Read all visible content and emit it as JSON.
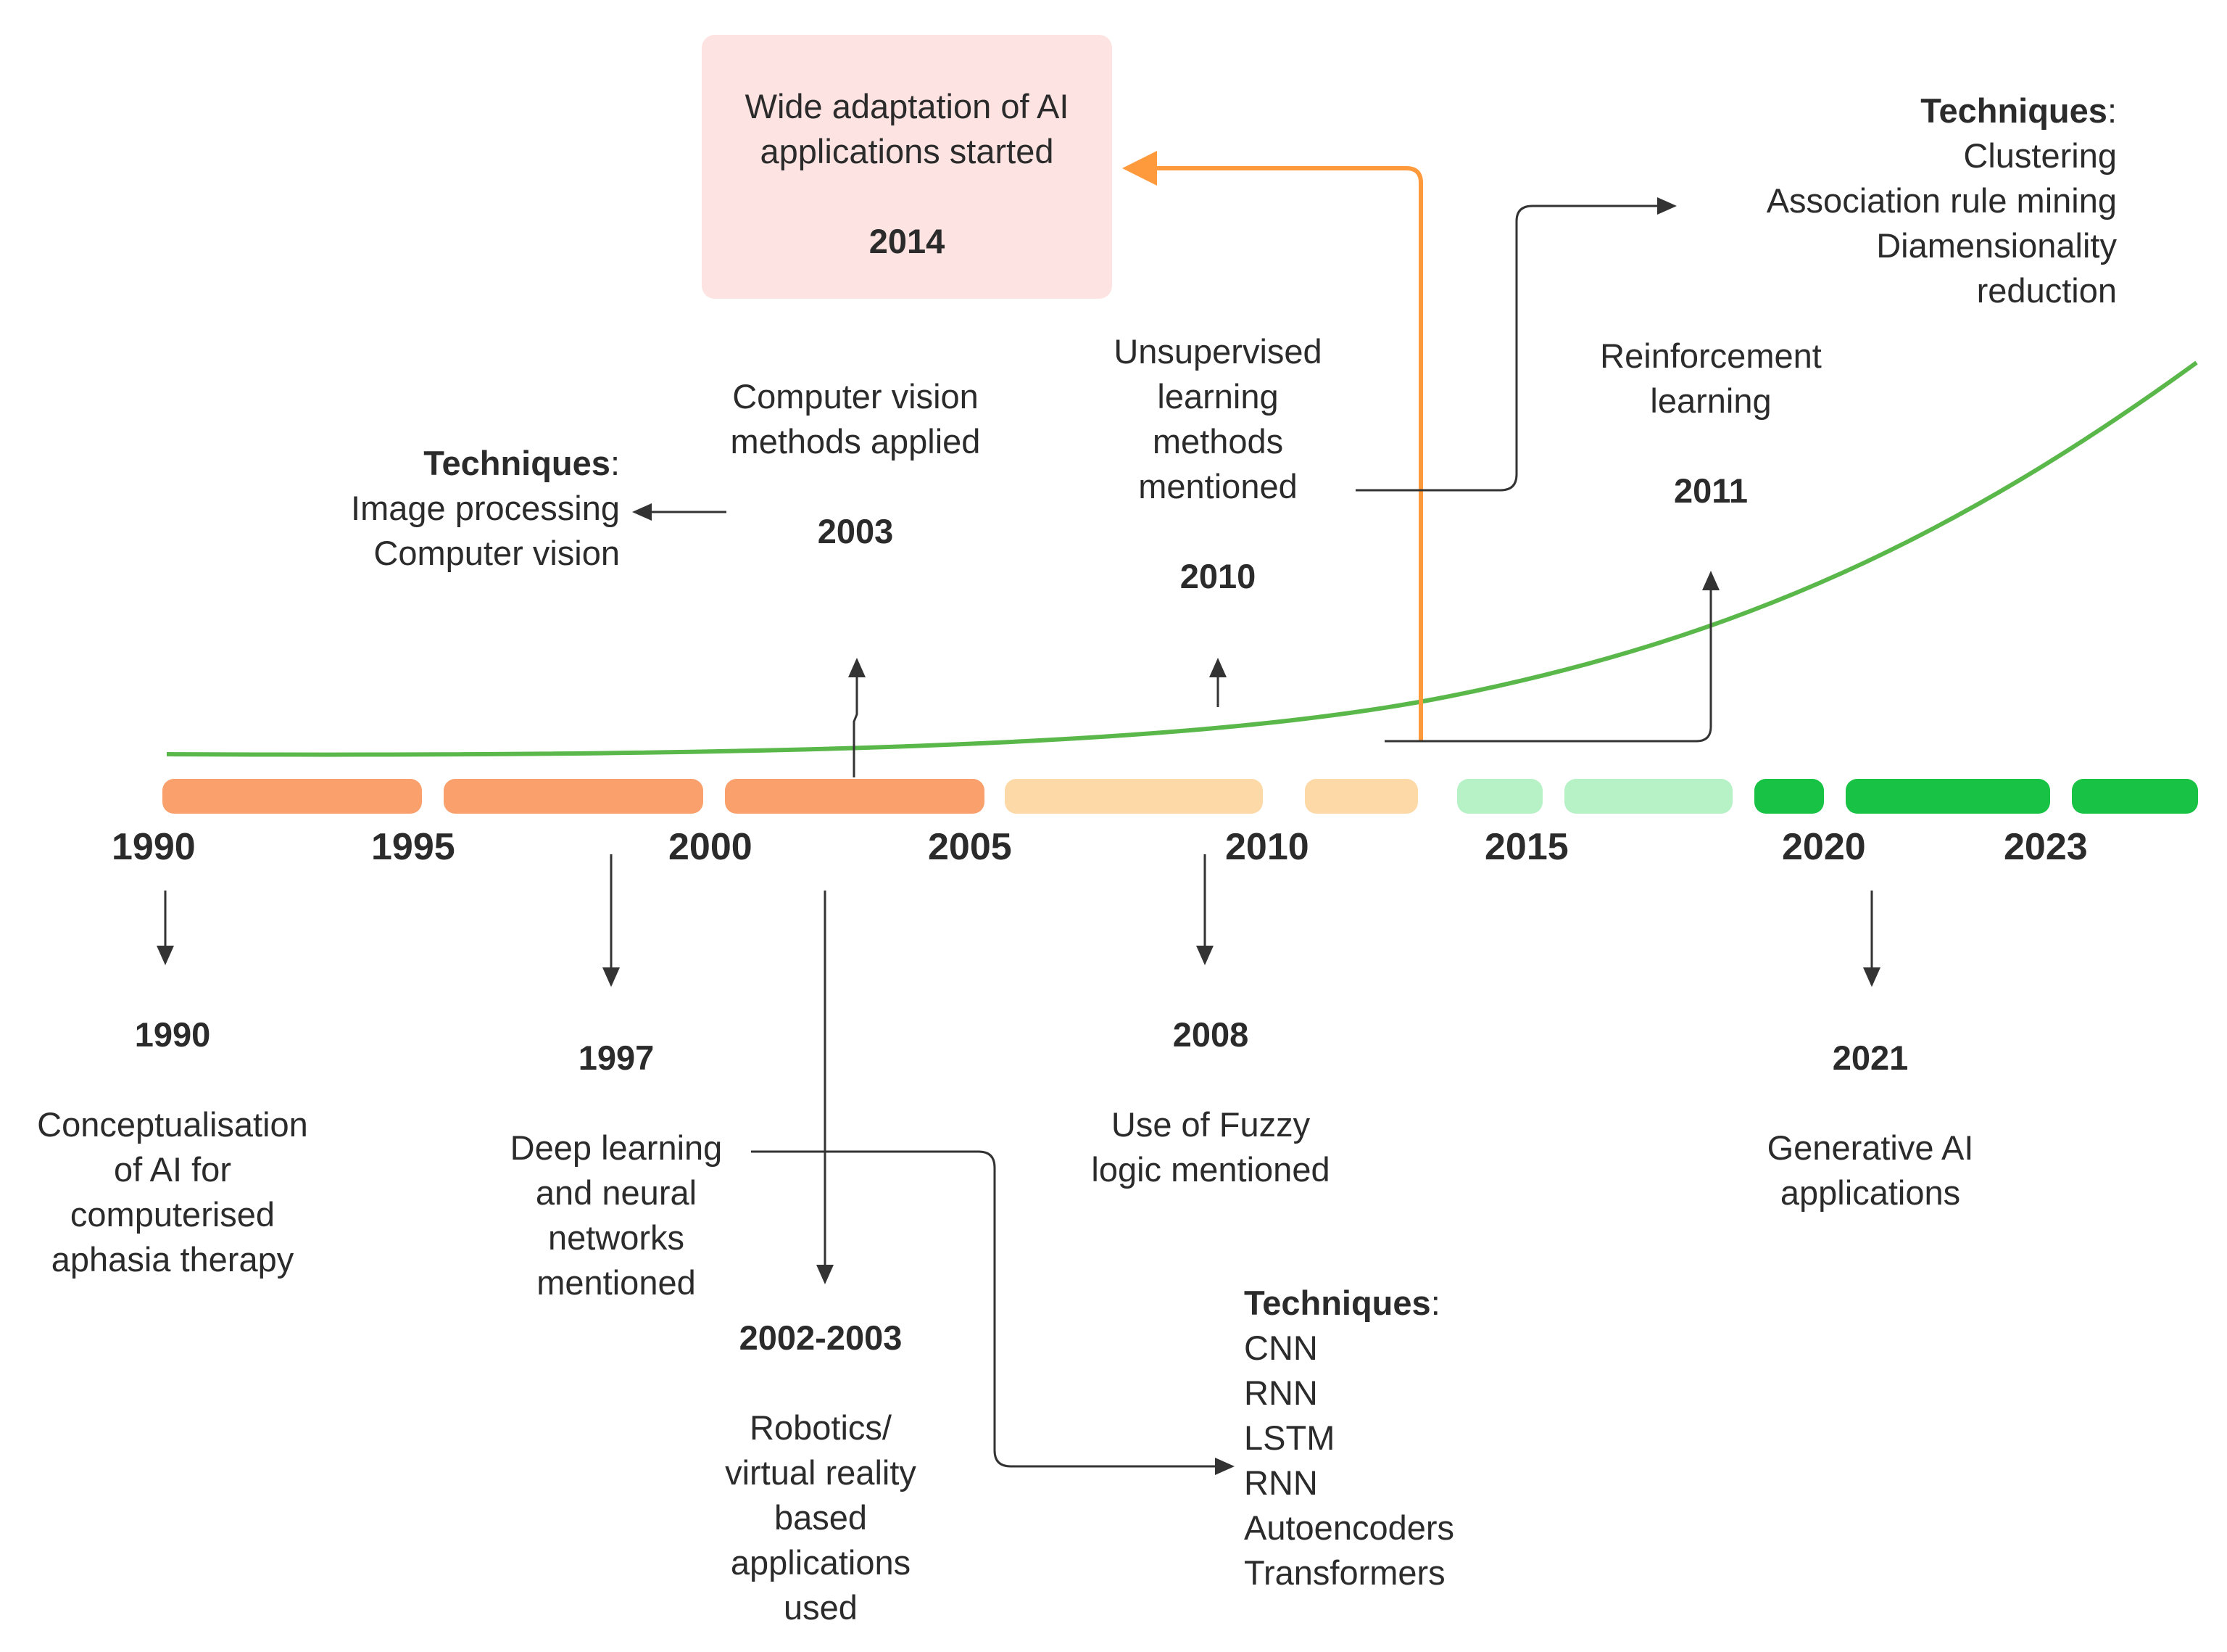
{
  "axis": {
    "ticks": [
      "1990",
      "1995",
      "2000",
      "2005",
      "2010",
      "2015",
      "2020",
      "2023"
    ]
  },
  "colors": {
    "early": "#f9a06c",
    "mid": "#fdd9a8",
    "late_light": "#b6f2c6",
    "late_dark": "#18c244",
    "curve": "#5ab84a",
    "highlight_arrow": "#ff9a3c",
    "highlight_box": "#fde3e1",
    "arrow": "#333333"
  },
  "events_top": {
    "e2003": {
      "label": "Computer vision methods applied",
      "year": "2003"
    },
    "e2010": {
      "label": "Unsupervised learning methods mentioned",
      "year": "2010"
    },
    "e2011": {
      "label": "Reinforcement learning",
      "year": "2011"
    },
    "e2014": {
      "label": "Wide adaptation of AI applications started",
      "year": "2014"
    }
  },
  "techniques_cv": {
    "heading": "Techniques",
    "items": [
      "Image processing",
      "Computer vision"
    ]
  },
  "techniques_unsup": {
    "heading": "Techniques",
    "items": [
      "Clustering",
      "Association rule mining",
      "Diamensionality",
      "reduction"
    ]
  },
  "events_bottom": {
    "e1990": {
      "year": "1990",
      "label": "Conceptualisation of AI for computerised aphasia therapy"
    },
    "e1997": {
      "year": "1997",
      "label": "Deep learning and neural networks mentioned"
    },
    "e2002": {
      "year": "2002-2003",
      "label": "Robotics/ virtual reality based applications used"
    },
    "e2008": {
      "year": "2008",
      "label": "Use of Fuzzy logic mentioned"
    },
    "e2021": {
      "year": "2021",
      "label": "Generative AI applications"
    }
  },
  "techniques_dl": {
    "heading": "Techniques",
    "items": [
      "CNN",
      "RNN",
      "LSTM",
      "RNN",
      "Autoencoders",
      "Transformers"
    ]
  }
}
